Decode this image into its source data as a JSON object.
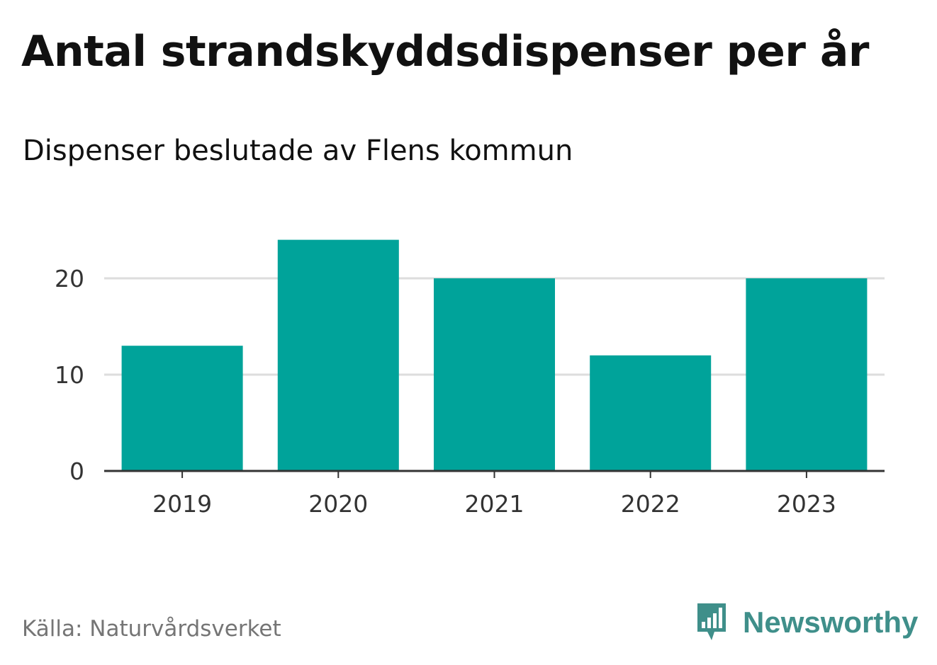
{
  "title": "Antal strandskyddsdispenser per år",
  "subtitle": "Dispenser beslutade av Flens kommun",
  "source": "Källa: Naturvårdsverket",
  "brand": {
    "name": "Newsworthy",
    "icon": "newsworthy-logo-icon",
    "color": "#3f8f8a"
  },
  "colors": {
    "bar": "#00a39a",
    "grid": "#dddddd",
    "axis": "#333333"
  },
  "chart_data": {
    "type": "bar",
    "title": "Antal strandskyddsdispenser per år",
    "subtitle": "Dispenser beslutade av Flens kommun",
    "categories": [
      "2019",
      "2020",
      "2021",
      "2022",
      "2023"
    ],
    "values": [
      13,
      24,
      20,
      12,
      20
    ],
    "yticks": [
      0,
      10,
      20
    ],
    "ylim": [
      0,
      24
    ],
    "xlabel": "",
    "ylabel": "",
    "grid": true,
    "legend": "none"
  }
}
